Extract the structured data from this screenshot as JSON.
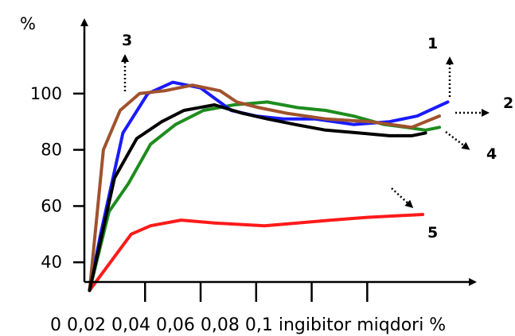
{
  "chart_data": {
    "type": "line",
    "ylabel": "%",
    "xlabel": "0 0,02 0,04 0,06 0,08 0,1 ingibitor miqdori  %",
    "x_ticks": [
      0,
      0.02,
      0.04,
      0.06,
      0.08,
      0.1
    ],
    "y_ticks": [
      40,
      60,
      80,
      100
    ],
    "xlim": [
      -0.001,
      0.13
    ],
    "ylim": [
      33,
      120
    ],
    "series": [
      {
        "name": "1",
        "color": "#1a1aff",
        "x": [
          0,
          0.004,
          0.012,
          0.021,
          0.03,
          0.04,
          0.051,
          0.06,
          0.07,
          0.081,
          0.095,
          0.108,
          0.118,
          0.129
        ],
        "y": [
          30,
          50,
          86,
          100,
          104,
          102,
          94,
          92,
          91,
          91,
          89,
          90,
          92,
          97
        ]
      },
      {
        "name": "2",
        "color": "#1e8c1e",
        "x": [
          0,
          0.007,
          0.014,
          0.022,
          0.031,
          0.041,
          0.052,
          0.064,
          0.075,
          0.085,
          0.095,
          0.106,
          0.114,
          0.121,
          0.126
        ],
        "y": [
          30,
          58,
          68,
          82,
          89,
          94,
          96,
          97,
          95,
          94,
          92,
          89,
          88,
          87,
          88
        ]
      },
      {
        "name": "3",
        "color": "#a0522d",
        "x": [
          0,
          0.005,
          0.011,
          0.018,
          0.027,
          0.037,
          0.047,
          0.053,
          0.061,
          0.071,
          0.085,
          0.101,
          0.116,
          0.126
        ],
        "y": [
          30,
          80,
          94,
          100,
          101,
          103,
          101,
          97,
          95,
          93,
          91,
          90,
          88,
          92
        ]
      },
      {
        "name": "4",
        "color": "#000000",
        "x": [
          0,
          0.009,
          0.017,
          0.026,
          0.034,
          0.045,
          0.055,
          0.064,
          0.074,
          0.085,
          0.097,
          0.108,
          0.116,
          0.121
        ],
        "y": [
          30,
          70,
          84,
          90,
          94,
          96,
          93,
          91,
          89,
          87,
          86,
          85,
          85,
          86
        ]
      },
      {
        "name": "5",
        "color": "#ff1a1a",
        "x": [
          0,
          0.015,
          0.022,
          0.033,
          0.045,
          0.063,
          0.075,
          0.087,
          0.1,
          0.12
        ],
        "y": [
          30,
          50,
          53,
          55,
          54,
          53,
          54,
          55,
          56,
          57
        ]
      }
    ]
  }
}
